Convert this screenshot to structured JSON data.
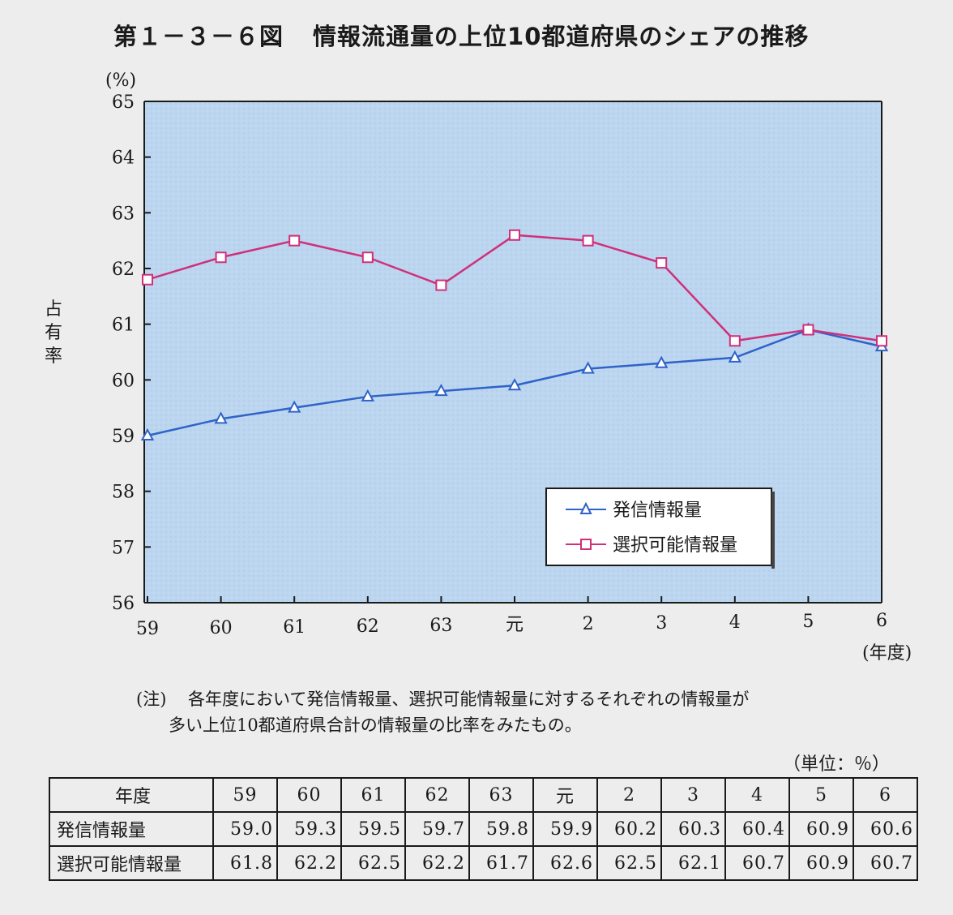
{
  "header": {
    "figure_number": "第１－３－６図",
    "title": "情報流通量の上位10都道府県のシェアの推移"
  },
  "chart_data": {
    "type": "line",
    "yunit": "(%)",
    "ylabel": "占有率",
    "xlabel": "(年度)",
    "ylim": [
      56,
      65
    ],
    "yticks": [
      "65",
      "64",
      "63",
      "62",
      "61",
      "60",
      "59",
      "58",
      "57",
      "56"
    ],
    "categories": [
      "59",
      "60",
      "61",
      "62",
      "63",
      "元",
      "2",
      "3",
      "4",
      "5",
      "6"
    ],
    "series": [
      {
        "name": "発信情報量",
        "marker": "triangle",
        "color": "#2f63c8",
        "values": [
          59.0,
          59.3,
          59.5,
          59.7,
          59.8,
          59.9,
          60.2,
          60.3,
          60.4,
          60.9,
          60.6
        ]
      },
      {
        "name": "選択可能情報量",
        "marker": "square",
        "color": "#d0307a",
        "values": [
          61.8,
          62.2,
          62.5,
          62.2,
          61.7,
          62.6,
          62.5,
          62.1,
          60.7,
          60.9,
          60.7
        ]
      }
    ],
    "plot_background": "#b9d4ef",
    "grid": false,
    "legend_position": "bottom-right"
  },
  "note": {
    "mark": "(注)",
    "line1": "各年度において発信情報量、選択可能情報量に対するそれぞれの情報量が",
    "line2": "多い上位10都道府県合計の情報量の比率をみたもの。"
  },
  "table": {
    "unit": "（単位：％）",
    "header_label": "年度",
    "years": [
      "59",
      "60",
      "61",
      "62",
      "63",
      "元",
      "2",
      "3",
      "4",
      "5",
      "6"
    ],
    "rows": [
      {
        "label": "発信情報量",
        "values": [
          "59.0",
          "59.3",
          "59.5",
          "59.7",
          "59.8",
          "59.9",
          "60.2",
          "60.3",
          "60.4",
          "60.9",
          "60.6"
        ]
      },
      {
        "label": "選択可能情報量",
        "values": [
          "61.8",
          "62.2",
          "62.5",
          "62.2",
          "61.7",
          "62.6",
          "62.5",
          "62.1",
          "60.7",
          "60.9",
          "60.7"
        ]
      }
    ]
  }
}
